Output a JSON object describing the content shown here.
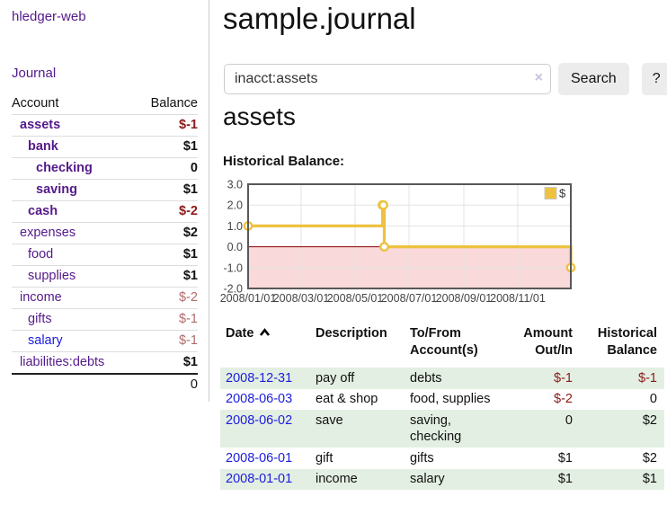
{
  "colors": {
    "link_purple": "#551a8b",
    "link_blue": "#1c1ce0",
    "negative_strong": "#8b1a1a",
    "negative_muted": "#b06a6a",
    "row_green": "#e3efe2",
    "chart_line": "#edc240",
    "chart_negative_fill": "#f9d9d9",
    "chart_zero_line": "#8b0000"
  },
  "app": {
    "title": "hledger-web"
  },
  "sidebar": {
    "journal_link": "Journal",
    "accounts": {
      "col_account": "Account",
      "col_balance": "Balance",
      "rows": [
        {
          "name": "assets",
          "balance": "$-1",
          "indent": 1,
          "bold": true,
          "balance_style": "negative-strong",
          "link": "purple"
        },
        {
          "name": "bank",
          "balance": "$1",
          "indent": 2,
          "bold": true,
          "balance_style": "normal",
          "link": "purple"
        },
        {
          "name": "checking",
          "balance": "0",
          "indent": 3,
          "bold": true,
          "balance_style": "normal",
          "link": "purple"
        },
        {
          "name": "saving",
          "balance": "$1",
          "indent": 3,
          "bold": true,
          "balance_style": "normal",
          "link": "purple"
        },
        {
          "name": "cash",
          "balance": "$-2",
          "indent": 2,
          "bold": true,
          "balance_style": "negative-strong",
          "link": "purple"
        },
        {
          "name": "expenses",
          "balance": "$2",
          "indent": 1,
          "bold": false,
          "balance_style": "normal",
          "link": "purple"
        },
        {
          "name": "food",
          "balance": "$1",
          "indent": 2,
          "bold": false,
          "balance_style": "normal",
          "link": "purple"
        },
        {
          "name": "supplies",
          "balance": "$1",
          "indent": 2,
          "bold": false,
          "balance_style": "normal",
          "link": "purple"
        },
        {
          "name": "income",
          "balance": "$-2",
          "indent": 1,
          "bold": false,
          "balance_style": "negative-muted",
          "link": "purple"
        },
        {
          "name": "gifts",
          "balance": "$-1",
          "indent": 2,
          "bold": false,
          "balance_style": "negative-muted",
          "link": "purple"
        },
        {
          "name": "salary",
          "balance": "$-1",
          "indent": 2,
          "bold": false,
          "balance_style": "negative-muted",
          "link": "blue"
        },
        {
          "name": "liabilities:debts",
          "balance": "$1",
          "indent": 1,
          "bold": false,
          "balance_style": "normal",
          "link": "purple"
        }
      ],
      "total": "0"
    }
  },
  "main": {
    "title": "sample.journal",
    "search": {
      "value": "inacct:assets",
      "clear_icon": "×",
      "search_button": "Search",
      "help_button": "?"
    },
    "account_heading": "assets",
    "chart_title": "Historical Balance:"
  },
  "register": {
    "headers": {
      "date": "Date",
      "description": "Description",
      "account": "To/From Account(s)",
      "amount": "Amount Out/In",
      "balance": "Historical Balance"
    },
    "sort_icon": "chevron-up",
    "rows": [
      {
        "date": "2008-12-31",
        "description": "pay off",
        "accounts": "debts",
        "amount": "$-1",
        "amount_negative": true,
        "balance": "$-1",
        "balance_negative": true
      },
      {
        "date": "2008-06-03",
        "description": "eat & shop",
        "accounts": "food, supplies",
        "amount": "$-2",
        "amount_negative": true,
        "balance": "0",
        "balance_negative": false
      },
      {
        "date": "2008-06-02",
        "description": "save",
        "accounts": "saving, checking",
        "amount": "0",
        "amount_negative": false,
        "balance": "$2",
        "balance_negative": false
      },
      {
        "date": "2008-06-01",
        "description": "gift",
        "accounts": "gifts",
        "amount": "$1",
        "amount_negative": false,
        "balance": "$2",
        "balance_negative": false
      },
      {
        "date": "2008-01-01",
        "description": "income",
        "accounts": "salary",
        "amount": "$1",
        "amount_negative": false,
        "balance": "$1",
        "balance_negative": false
      }
    ]
  },
  "chart_data": {
    "type": "line",
    "title": "Historical Balance:",
    "step": true,
    "series": [
      {
        "name": "$",
        "color": "#edc240",
        "points": [
          {
            "date": "2008-01-01",
            "day": 0,
            "value": 1
          },
          {
            "date": "2008-06-01",
            "day": 152,
            "value": 2
          },
          {
            "date": "2008-06-02",
            "day": 153,
            "value": 2
          },
          {
            "date": "2008-06-03",
            "day": 154,
            "value": 0
          },
          {
            "date": "2008-12-31",
            "day": 365,
            "value": -1
          }
        ]
      }
    ],
    "x_ticks": [
      {
        "day": 0,
        "label": "2008/01/01"
      },
      {
        "day": 60,
        "label": "2008/03/01"
      },
      {
        "day": 121,
        "label": "2008/05/01"
      },
      {
        "day": 182,
        "label": "2008/07/01"
      },
      {
        "day": 244,
        "label": "2008/09/01"
      },
      {
        "day": 305,
        "label": "2008/11/01"
      }
    ],
    "y_ticks": [
      "3.0",
      "2.0",
      "1.0",
      "0.0",
      "-1.0",
      "-2.0"
    ],
    "x_range_days": [
      0,
      365
    ],
    "ylim": [
      -2,
      3
    ],
    "grid": true,
    "legend_position": "top-right",
    "negative_region_color": "#f9d9d9",
    "zero_line_color": "#8b0000"
  }
}
